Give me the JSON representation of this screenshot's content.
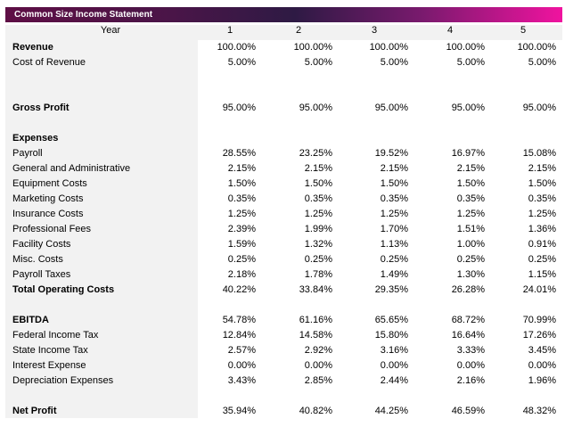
{
  "title": "Common Size Income Statement",
  "header": {
    "label": "Year",
    "years": [
      "1",
      "2",
      "3",
      "4",
      "5"
    ]
  },
  "rows": [
    {
      "label": "Revenue",
      "bold": true,
      "values": [
        "100.00%",
        "100.00%",
        "100.00%",
        "100.00%",
        "100.00%"
      ]
    },
    {
      "label": "Cost of Revenue",
      "values": [
        "5.00%",
        "5.00%",
        "5.00%",
        "5.00%",
        "5.00%"
      ]
    },
    null,
    null,
    {
      "label": "Gross Profit",
      "bold": true,
      "values": [
        "95.00%",
        "95.00%",
        "95.00%",
        "95.00%",
        "95.00%"
      ]
    },
    null,
    {
      "label": "Expenses",
      "bold": true,
      "values": []
    },
    {
      "label": "Payroll",
      "values": [
        "28.55%",
        "23.25%",
        "19.52%",
        "16.97%",
        "15.08%"
      ]
    },
    {
      "label": "General and Administrative",
      "values": [
        "2.15%",
        "2.15%",
        "2.15%",
        "2.15%",
        "2.15%"
      ]
    },
    {
      "label": "Equipment Costs",
      "values": [
        "1.50%",
        "1.50%",
        "1.50%",
        "1.50%",
        "1.50%"
      ]
    },
    {
      "label": "Marketing Costs",
      "values": [
        "0.35%",
        "0.35%",
        "0.35%",
        "0.35%",
        "0.35%"
      ]
    },
    {
      "label": "Insurance Costs",
      "values": [
        "1.25%",
        "1.25%",
        "1.25%",
        "1.25%",
        "1.25%"
      ]
    },
    {
      "label": "Professional Fees",
      "values": [
        "2.39%",
        "1.99%",
        "1.70%",
        "1.51%",
        "1.36%"
      ]
    },
    {
      "label": "Facility Costs",
      "values": [
        "1.59%",
        "1.32%",
        "1.13%",
        "1.00%",
        "0.91%"
      ]
    },
    {
      "label": "Misc. Costs",
      "values": [
        "0.25%",
        "0.25%",
        "0.25%",
        "0.25%",
        "0.25%"
      ]
    },
    {
      "label": "Payroll Taxes",
      "values": [
        "2.18%",
        "1.78%",
        "1.49%",
        "1.30%",
        "1.15%"
      ]
    },
    {
      "label": "Total Operating Costs",
      "bold": true,
      "values": [
        "40.22%",
        "33.84%",
        "29.35%",
        "26.28%",
        "24.01%"
      ]
    },
    null,
    {
      "label": "EBITDA",
      "bold": true,
      "values": [
        "54.78%",
        "61.16%",
        "65.65%",
        "68.72%",
        "70.99%"
      ]
    },
    {
      "label": "Federal Income Tax",
      "values": [
        "12.84%",
        "14.58%",
        "15.80%",
        "16.64%",
        "17.26%"
      ]
    },
    {
      "label": "State Income Tax",
      "values": [
        "2.57%",
        "2.92%",
        "3.16%",
        "3.33%",
        "3.45%"
      ]
    },
    {
      "label": "Interest Expense",
      "values": [
        "0.00%",
        "0.00%",
        "0.00%",
        "0.00%",
        "0.00%"
      ]
    },
    {
      "label": "Depreciation Expenses",
      "values": [
        "3.43%",
        "2.85%",
        "2.44%",
        "2.16%",
        "1.96%"
      ]
    },
    null,
    {
      "label": "Net Profit",
      "bold": true,
      "values": [
        "35.94%",
        "40.82%",
        "44.25%",
        "46.59%",
        "48.32%"
      ]
    }
  ]
}
